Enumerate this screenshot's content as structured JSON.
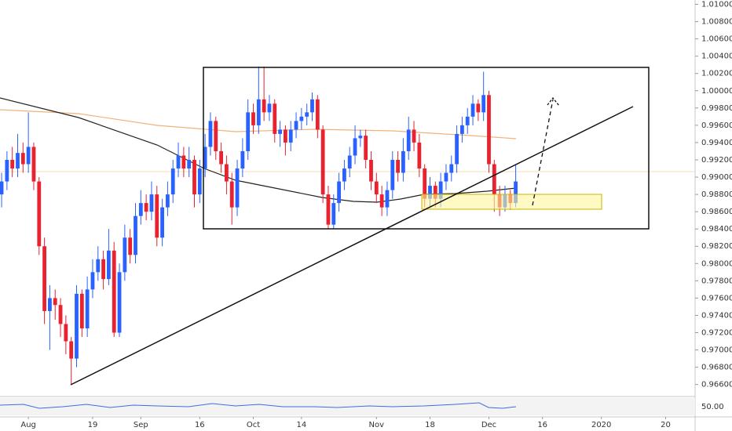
{
  "chart_data": {
    "type": "candlestick",
    "up_color": "#2962ff",
    "down_color": "#e8222e",
    "grid": false,
    "ylim": [
      0.9647,
      1.0105
    ],
    "yticks": [
      {
        "value": 0.966,
        "label": "0.96600"
      },
      {
        "value": 0.968,
        "label": "0.96800"
      },
      {
        "value": 0.97,
        "label": "0.97000"
      },
      {
        "value": 0.972,
        "label": "0.97200"
      },
      {
        "value": 0.974,
        "label": "0.97400"
      },
      {
        "value": 0.976,
        "label": "0.97600"
      },
      {
        "value": 0.978,
        "label": "0.97800"
      },
      {
        "value": 0.98,
        "label": "0.98000"
      },
      {
        "value": 0.982,
        "label": "0.98200"
      },
      {
        "value": 0.984,
        "label": "0.98400"
      },
      {
        "value": 0.986,
        "label": "0.98600"
      },
      {
        "value": 0.988,
        "label": "0.98800"
      },
      {
        "value": 0.99,
        "label": "0.99000"
      },
      {
        "value": 0.992,
        "label": "0.99200"
      },
      {
        "value": 0.994,
        "label": "0.99400"
      },
      {
        "value": 0.996,
        "label": "0.99600"
      },
      {
        "value": 0.998,
        "label": "0.99800"
      },
      {
        "value": 1.0,
        "label": "1.00000"
      },
      {
        "value": 1.002,
        "label": "1.00200"
      },
      {
        "value": 1.004,
        "label": "1.00400"
      },
      {
        "value": 1.006,
        "label": "1.00600"
      },
      {
        "value": 1.008,
        "label": "1.00800"
      },
      {
        "value": 1.01,
        "label": "1.01000"
      }
    ],
    "xlim": [
      -0.3,
      129.5
    ],
    "xticks": [
      {
        "value": 5,
        "label": "Aug"
      },
      {
        "value": 17,
        "label": "19"
      },
      {
        "value": 26,
        "label": "Sep"
      },
      {
        "value": 37,
        "label": "16"
      },
      {
        "value": 47,
        "label": "Oct"
      },
      {
        "value": 56,
        "label": "14"
      },
      {
        "value": 70,
        "label": "Nov"
      },
      {
        "value": 80,
        "label": "18"
      },
      {
        "value": 91,
        "label": "Dec"
      },
      {
        "value": 101,
        "label": "16"
      },
      {
        "value": 112,
        "label": "2020"
      },
      {
        "value": 124,
        "label": "20"
      }
    ],
    "rsi_label": "50.00",
    "ohlc": [
      [
        0.988,
        0.9905,
        0.9865,
        0.9895
      ],
      [
        0.9895,
        0.993,
        0.9885,
        0.992
      ],
      [
        0.992,
        0.9935,
        0.99,
        0.991
      ],
      [
        0.991,
        0.995,
        0.99,
        0.9928
      ],
      [
        0.9928,
        0.994,
        0.9905,
        0.9915
      ],
      [
        0.9915,
        0.9975,
        0.9905,
        0.9935
      ],
      [
        0.9935,
        0.994,
        0.9885,
        0.9895
      ],
      [
        0.9895,
        0.99,
        0.981,
        0.982
      ],
      [
        0.982,
        0.983,
        0.973,
        0.9745
      ],
      [
        0.9745,
        0.9775,
        0.97,
        0.976
      ],
      [
        0.976,
        0.977,
        0.9735,
        0.9752
      ],
      [
        0.9752,
        0.976,
        0.9715,
        0.973
      ],
      [
        0.973,
        0.974,
        0.9695,
        0.971
      ],
      [
        0.971,
        0.9715,
        0.966,
        0.969
      ],
      [
        0.969,
        0.9775,
        0.968,
        0.9765
      ],
      [
        0.9765,
        0.977,
        0.9715,
        0.9725
      ],
      [
        0.9725,
        0.9785,
        0.9715,
        0.977
      ],
      [
        0.977,
        0.9805,
        0.976,
        0.979
      ],
      [
        0.979,
        0.982,
        0.978,
        0.9805
      ],
      [
        0.9805,
        0.9815,
        0.977,
        0.9782
      ],
      [
        0.9782,
        0.984,
        0.9775,
        0.9815
      ],
      [
        0.9815,
        0.9825,
        0.9715,
        0.972
      ],
      [
        0.972,
        0.98,
        0.9715,
        0.979
      ],
      [
        0.979,
        0.9845,
        0.978,
        0.983
      ],
      [
        0.983,
        0.984,
        0.98,
        0.981
      ],
      [
        0.981,
        0.987,
        0.98,
        0.9855
      ],
      [
        0.9855,
        0.9885,
        0.9845,
        0.987
      ],
      [
        0.987,
        0.988,
        0.985,
        0.986
      ],
      [
        0.986,
        0.9895,
        0.985,
        0.988
      ],
      [
        0.988,
        0.989,
        0.982,
        0.983
      ],
      [
        0.983,
        0.9875,
        0.982,
        0.9865
      ],
      [
        0.9865,
        0.9895,
        0.9855,
        0.988
      ],
      [
        0.988,
        0.992,
        0.987,
        0.991
      ],
      [
        0.991,
        0.994,
        0.99,
        0.9925
      ],
      [
        0.9925,
        0.9935,
        0.99,
        0.991
      ],
      [
        0.991,
        0.9935,
        0.99,
        0.992
      ],
      [
        0.992,
        0.9925,
        0.9865,
        0.988
      ],
      [
        0.988,
        0.992,
        0.987,
        0.991
      ],
      [
        0.991,
        0.995,
        0.99,
        0.9935
      ],
      [
        0.9935,
        0.9975,
        0.9925,
        0.9965
      ],
      [
        0.9965,
        0.997,
        0.992,
        0.993
      ],
      [
        0.993,
        0.994,
        0.9905,
        0.9915
      ],
      [
        0.9915,
        0.9925,
        0.988,
        0.9895
      ],
      [
        0.9895,
        0.9905,
        0.9845,
        0.9865
      ],
      [
        0.9865,
        0.992,
        0.9855,
        0.991
      ],
      [
        0.991,
        0.9945,
        0.99,
        0.993
      ],
      [
        0.993,
        0.999,
        0.992,
        0.9975
      ],
      [
        0.9975,
        0.9985,
        0.995,
        0.996
      ],
      [
        0.996,
        1.0028,
        0.995,
        0.999
      ],
      [
        0.999,
        1.0028,
        0.9965,
        0.9975
      ],
      [
        0.9975,
        0.9995,
        0.9965,
        0.9985
      ],
      [
        0.9985,
        0.999,
        0.994,
        0.995
      ],
      [
        0.995,
        0.9965,
        0.9935,
        0.9955
      ],
      [
        0.9955,
        0.996,
        0.9925,
        0.994
      ],
      [
        0.994,
        0.9965,
        0.993,
        0.9955
      ],
      [
        0.9955,
        0.9975,
        0.9945,
        0.9965
      ],
      [
        0.9965,
        0.998,
        0.9955,
        0.997
      ],
      [
        0.997,
        0.9985,
        0.996,
        0.9975
      ],
      [
        0.9975,
        0.9998,
        0.9965,
        0.999
      ],
      [
        0.999,
        0.9995,
        0.9945,
        0.9955
      ],
      [
        0.9955,
        0.996,
        0.987,
        0.988
      ],
      [
        0.988,
        0.989,
        0.984,
        0.9845
      ],
      [
        0.9845,
        0.988,
        0.984,
        0.987
      ],
      [
        0.987,
        0.9905,
        0.986,
        0.9895
      ],
      [
        0.9895,
        0.992,
        0.9885,
        0.991
      ],
      [
        0.991,
        0.9935,
        0.99,
        0.9925
      ],
      [
        0.9925,
        0.996,
        0.9915,
        0.9945
      ],
      [
        0.9945,
        0.9955,
        0.9935,
        0.9948
      ],
      [
        0.9948,
        0.9955,
        0.991,
        0.992
      ],
      [
        0.992,
        0.993,
        0.9885,
        0.9895
      ],
      [
        0.9895,
        0.9905,
        0.987,
        0.988
      ],
      [
        0.988,
        0.989,
        0.9855,
        0.9865
      ],
      [
        0.9865,
        0.9895,
        0.9855,
        0.9885
      ],
      [
        0.9885,
        0.993,
        0.9875,
        0.992
      ],
      [
        0.992,
        0.993,
        0.9895,
        0.9905
      ],
      [
        0.9905,
        0.9945,
        0.9895,
        0.993
      ],
      [
        0.993,
        0.997,
        0.992,
        0.9955
      ],
      [
        0.9955,
        0.9965,
        0.993,
        0.994
      ],
      [
        0.994,
        0.995,
        0.99,
        0.991
      ],
      [
        0.991,
        0.9915,
        0.9865,
        0.9875
      ],
      [
        0.9875,
        0.99,
        0.9865,
        0.989
      ],
      [
        0.989,
        0.9895,
        0.9865,
        0.9875
      ],
      [
        0.9875,
        0.9905,
        0.9865,
        0.9895
      ],
      [
        0.9895,
        0.9915,
        0.9885,
        0.9905
      ],
      [
        0.9905,
        0.9925,
        0.9895,
        0.9915
      ],
      [
        0.9915,
        0.996,
        0.9905,
        0.995
      ],
      [
        0.995,
        0.997,
        0.994,
        0.996
      ],
      [
        0.996,
        0.998,
        0.995,
        0.997
      ],
      [
        0.997,
        0.9995,
        0.996,
        0.9985
      ],
      [
        0.9985,
        0.999,
        0.9965,
        0.9975
      ],
      [
        0.9975,
        1.0022,
        0.9965,
        0.9995
      ],
      [
        0.9995,
        1.0,
        0.9905,
        0.9915
      ],
      [
        0.9915,
        0.992,
        0.986,
        0.988
      ],
      [
        0.988,
        0.989,
        0.9855,
        0.9865
      ],
      [
        0.9865,
        0.989,
        0.986,
        0.988
      ],
      [
        0.988,
        0.9885,
        0.9862,
        0.987
      ],
      [
        0.987,
        0.9915,
        0.9865,
        0.9895
      ]
    ]
  }
}
